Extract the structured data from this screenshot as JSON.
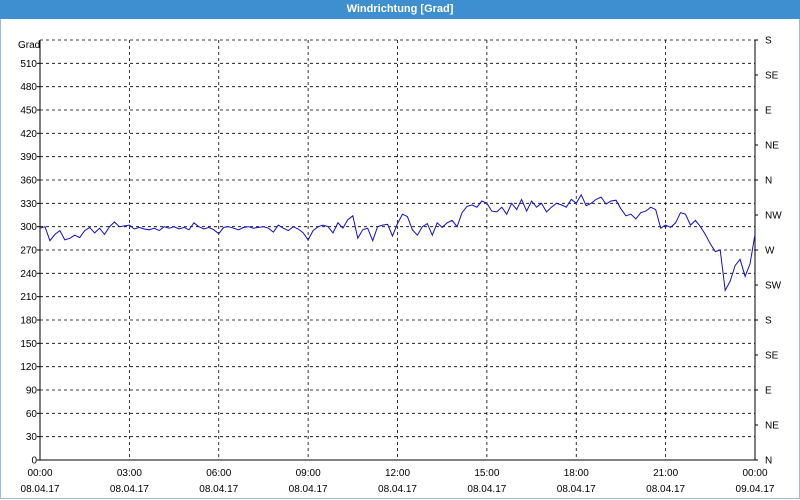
{
  "window": {
    "title": "Windrichtung [Grad]"
  },
  "colors": {
    "titlebar": "#3d8fcf",
    "line": "#1010c8",
    "grid": "#000000"
  },
  "chart_data": {
    "type": "line",
    "title": "Windrichtung [Grad]",
    "ylabel": "Grad",
    "ylim": [
      0,
      540
    ],
    "y_ticks": [
      0,
      30,
      60,
      90,
      120,
      150,
      180,
      210,
      240,
      270,
      300,
      330,
      360,
      390,
      420,
      450,
      480,
      510
    ],
    "right_ticks": [
      {
        "v": 0,
        "label": "N"
      },
      {
        "v": 45,
        "label": "NE"
      },
      {
        "v": 90,
        "label": "E"
      },
      {
        "v": 135,
        "label": "SE"
      },
      {
        "v": 180,
        "label": "S"
      },
      {
        "v": 225,
        "label": "SW"
      },
      {
        "v": 270,
        "label": "W"
      },
      {
        "v": 315,
        "label": "NW"
      },
      {
        "v": 360,
        "label": "N"
      },
      {
        "v": 405,
        "label": "NE"
      },
      {
        "v": 450,
        "label": "E"
      },
      {
        "v": 495,
        "label": "SE"
      },
      {
        "v": 540,
        "label": "S"
      }
    ],
    "x_ticks": [
      {
        "time": "00:00",
        "date": "08.04.17"
      },
      {
        "time": "03:00",
        "date": "08.04.17"
      },
      {
        "time": "06:00",
        "date": "08.04.17"
      },
      {
        "time": "09:00",
        "date": "08.04.17"
      },
      {
        "time": "12:00",
        "date": "08.04.17"
      },
      {
        "time": "15:00",
        "date": "08.04.17"
      },
      {
        "time": "18:00",
        "date": "08.04.17"
      },
      {
        "time": "21:00",
        "date": "08.04.17"
      },
      {
        "time": "00:00",
        "date": "09.04.17"
      }
    ],
    "grid": true,
    "series": [
      {
        "x": [
          "00:00",
          "00:10",
          "00:20",
          "00:30",
          "00:40",
          "00:50",
          "01:00",
          "01:10",
          "01:20",
          "01:30",
          "01:40",
          "01:50",
          "02:00",
          "02:10",
          "02:20",
          "02:30",
          "02:40",
          "02:50",
          "03:00",
          "03:10",
          "03:20",
          "03:30",
          "03:40",
          "03:50",
          "04:00",
          "04:10",
          "04:20",
          "04:30",
          "04:40",
          "04:50",
          "05:00",
          "05:10",
          "05:20",
          "05:30",
          "05:40",
          "05:50",
          "06:00",
          "06:10",
          "06:20",
          "06:30",
          "06:40",
          "06:50",
          "07:00",
          "07:10",
          "07:20",
          "07:30",
          "07:40",
          "07:50",
          "08:00",
          "08:10",
          "08:20",
          "08:30",
          "08:40",
          "08:50",
          "09:00",
          "09:10",
          "09:20",
          "09:30",
          "09:40",
          "09:50",
          "10:00",
          "10:10",
          "10:20",
          "10:30",
          "10:40",
          "10:50",
          "11:00",
          "11:10",
          "11:20",
          "11:30",
          "11:40",
          "11:50",
          "12:00",
          "12:10",
          "12:20",
          "12:30",
          "12:40",
          "12:50",
          "13:00",
          "13:10",
          "13:20",
          "13:30",
          "13:40",
          "13:50",
          "14:00",
          "14:10",
          "14:20",
          "14:30",
          "14:40",
          "14:50",
          "15:00",
          "15:10",
          "15:20",
          "15:30",
          "15:40",
          "15:50",
          "16:00",
          "16:10",
          "16:20",
          "16:30",
          "16:40",
          "16:50",
          "17:00",
          "17:10",
          "17:20",
          "17:30",
          "17:40",
          "17:50",
          "18:00",
          "18:10",
          "18:20",
          "18:30",
          "18:40",
          "18:50",
          "19:00",
          "19:10",
          "19:20",
          "19:30",
          "19:40",
          "19:50",
          "20:00",
          "20:10",
          "20:20",
          "20:30",
          "20:40",
          "20:50",
          "21:00",
          "21:10",
          "21:20",
          "21:30",
          "21:40",
          "21:50",
          "22:00",
          "22:10",
          "22:20",
          "22:30",
          "22:40",
          "22:50",
          "23:00",
          "23:10",
          "23:20",
          "23:30",
          "23:40",
          "23:50",
          "24:00"
        ],
        "values": [
          298,
          300,
          282,
          290,
          295,
          283,
          285,
          289,
          286,
          295,
          299,
          292,
          298,
          290,
          300,
          306,
          300,
          301,
          302,
          297,
          299,
          297,
          296,
          298,
          295,
          300,
          298,
          300,
          297,
          299,
          296,
          305,
          300,
          297,
          299,
          296,
          291,
          299,
          300,
          298,
          296,
          299,
          300,
          298,
          299,
          300,
          298,
          293,
          302,
          298,
          295,
          300,
          297,
          292,
          283,
          295,
          300,
          302,
          300,
          292,
          305,
          298,
          309,
          314,
          285,
          296,
          298,
          282,
          300,
          302,
          303,
          288,
          304,
          316,
          313,
          296,
          289,
          300,
          304,
          289,
          305,
          299,
          305,
          308,
          300,
          318,
          326,
          328,
          325,
          333,
          330,
          320,
          319,
          325,
          316,
          330,
          322,
          335,
          320,
          333,
          325,
          330,
          319,
          325,
          330,
          328,
          325,
          335,
          330,
          341,
          327,
          330,
          335,
          338,
          329,
          333,
          334,
          323,
          314,
          316,
          310,
          318,
          320,
          325,
          322,
          298,
          302,
          299,
          305,
          318,
          316,
          302,
          308,
          300,
          290,
          278,
          268,
          270,
          218,
          230,
          250,
          258,
          236,
          252,
          290
        ]
      }
    ]
  }
}
